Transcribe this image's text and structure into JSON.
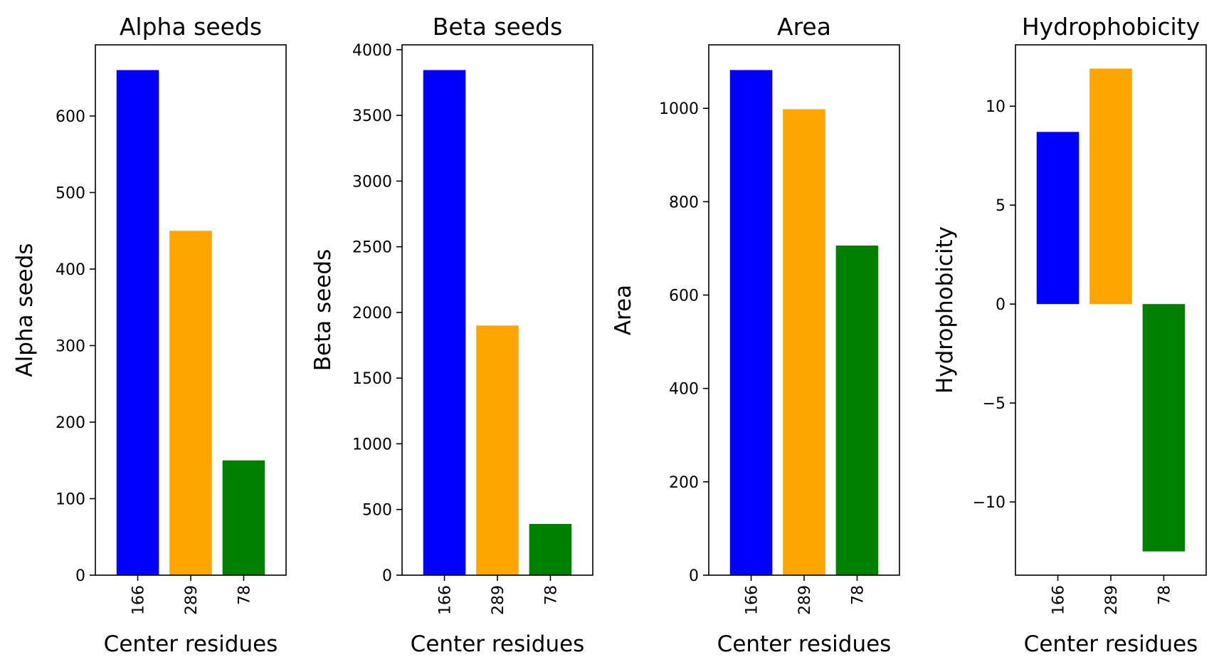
{
  "chart_data": [
    {
      "type": "bar",
      "title": "Alpha seeds",
      "xlabel": "Center residues",
      "ylabel": "Alpha seeds",
      "categories": [
        "166",
        "289",
        "78"
      ],
      "values": [
        660,
        450,
        150
      ],
      "colors": [
        "#0000ff",
        "#ffa500",
        "#008000"
      ],
      "ylim": [
        0,
        693
      ],
      "yticks": [
        0,
        100,
        200,
        300,
        400,
        500,
        600
      ],
      "ytick_labels": [
        "0",
        "100",
        "200",
        "300",
        "400",
        "500",
        "600"
      ],
      "grid": false
    },
    {
      "type": "bar",
      "title": "Beta seeds",
      "xlabel": "Center residues",
      "ylabel": "Beta seeds",
      "categories": [
        "166",
        "289",
        "78"
      ],
      "values": [
        3845,
        1900,
        390
      ],
      "colors": [
        "#0000ff",
        "#ffa500",
        "#008000"
      ],
      "ylim": [
        0,
        4037
      ],
      "yticks": [
        0,
        500,
        1000,
        1500,
        2000,
        2500,
        3000,
        3500,
        4000
      ],
      "ytick_labels": [
        "0",
        "500",
        "1000",
        "1500",
        "2000",
        "2500",
        "3000",
        "3500",
        "4000"
      ],
      "grid": false
    },
    {
      "type": "bar",
      "title": "Area",
      "xlabel": "Center residues",
      "ylabel": "Area",
      "categories": [
        "166",
        "289",
        "78"
      ],
      "values": [
        1082,
        998,
        706
      ],
      "colors": [
        "#0000ff",
        "#ffa500",
        "#008000"
      ],
      "ylim": [
        0,
        1136
      ],
      "yticks": [
        0,
        200,
        400,
        600,
        800,
        1000
      ],
      "ytick_labels": [
        "0",
        "200",
        "400",
        "600",
        "800",
        "1000"
      ],
      "grid": false
    },
    {
      "type": "bar",
      "title": "Hydrophobicity",
      "xlabel": "Center residues",
      "ylabel": "Hydrophobicity",
      "categories": [
        "166",
        "289",
        "78"
      ],
      "values": [
        8.7,
        11.9,
        -12.5
      ],
      "colors": [
        "#0000ff",
        "#ffa500",
        "#008000"
      ],
      "ylim": [
        -13.7,
        13.1
      ],
      "yticks": [
        -10,
        -5,
        0,
        5,
        10
      ],
      "ytick_labels": [
        "−10",
        "−5",
        "0",
        "5",
        "10"
      ],
      "grid": false
    }
  ]
}
